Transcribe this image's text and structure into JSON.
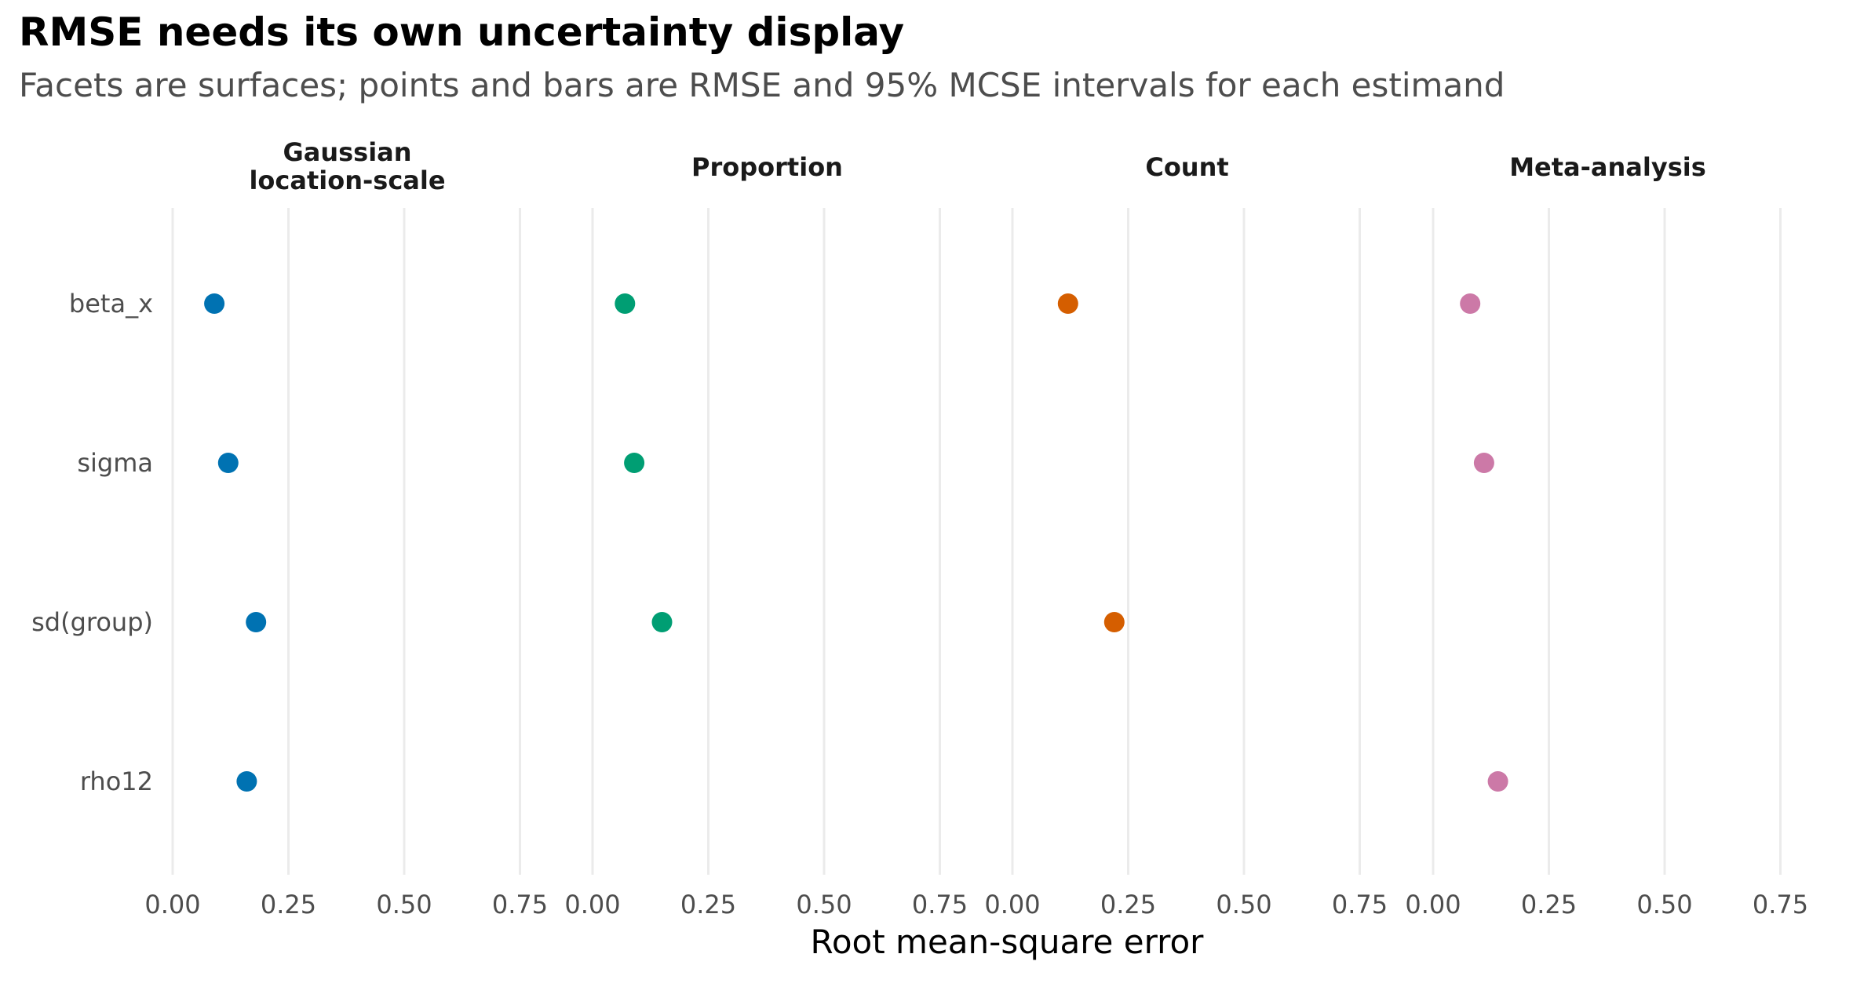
{
  "chart_data": {
    "type": "scatter",
    "title": "RMSE needs its own uncertainty display",
    "subtitle": "Facets are surfaces; points and bars are RMSE and 95% MCSE intervals for each estimand",
    "xlabel": "Root mean-square error",
    "ylabel": "",
    "xlim": [
      0,
      0.82
    ],
    "x_ticks": [
      "0.00",
      "0.25",
      "0.50",
      "0.75"
    ],
    "grid": "vertical",
    "legend": "none",
    "categories": [
      "beta_x",
      "sigma",
      "sd(group)",
      "rho12"
    ],
    "facets": [
      {
        "label": "Gaussian\nlocation-scale",
        "color": "#0072B2",
        "points": [
          {
            "y": "beta_x",
            "x": 0.09
          },
          {
            "y": "sigma",
            "x": 0.12
          },
          {
            "y": "sd(group)",
            "x": 0.18
          },
          {
            "y": "rho12",
            "x": 0.16
          }
        ]
      },
      {
        "label": "Proportion",
        "color": "#009E73",
        "points": [
          {
            "y": "beta_x",
            "x": 0.07
          },
          {
            "y": "sigma",
            "x": 0.09
          },
          {
            "y": "sd(group)",
            "x": 0.15
          }
        ]
      },
      {
        "label": "Count",
        "color": "#D55E00",
        "points": [
          {
            "y": "beta_x",
            "x": 0.12
          },
          {
            "y": "sd(group)",
            "x": 0.22
          }
        ]
      },
      {
        "label": "Meta-analysis",
        "color": "#CC79A7",
        "points": [
          {
            "y": "beta_x",
            "x": 0.08
          },
          {
            "y": "sigma",
            "x": 0.11
          },
          {
            "y": "rho12",
            "x": 0.14
          }
        ]
      }
    ]
  }
}
